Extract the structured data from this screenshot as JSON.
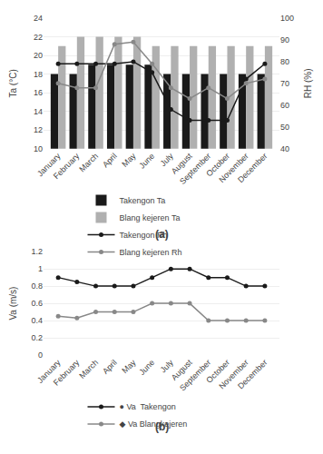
{
  "chart_data": [
    {
      "type": "bar",
      "categories": [
        "January",
        "February",
        "March",
        "April",
        "May",
        "June",
        "July",
        "August",
        "September",
        "October",
        "November",
        "December"
      ],
      "series": [
        {
          "name": "Takengon Ta",
          "color": "#1a1a1a",
          "values": [
            18,
            18,
            19,
            19,
            19,
            19,
            18,
            18,
            18,
            18,
            18,
            18
          ]
        },
        {
          "name": "Blang kejeren Ta",
          "color": "#b0b0b0",
          "values": [
            21,
            22,
            22,
            22,
            22,
            21,
            21,
            21,
            21,
            21,
            21,
            21
          ]
        },
        {
          "name": "Takengon Rh",
          "type": "line",
          "axis": "y2",
          "color": "#1a1a1a",
          "marker": "circle",
          "values": [
            79,
            79,
            79,
            79,
            80,
            75,
            58,
            53,
            53,
            53,
            72,
            79
          ]
        },
        {
          "name": "Blang kejeren Rh",
          "type": "line",
          "axis": "y2",
          "color": "#888888",
          "marker": "circle",
          "values": [
            70,
            68,
            68,
            88,
            89,
            79,
            68,
            63,
            68,
            63,
            70,
            72
          ]
        }
      ],
      "y_label": "Ta (°C)",
      "y2_label": "RH (%)",
      "ylim": [
        10,
        24
      ],
      "yticks": [
        10,
        12,
        14,
        16,
        18,
        20,
        22,
        24
      ],
      "y2lim": [
        40,
        100
      ],
      "y2ticks": [
        40,
        50,
        60,
        70,
        80,
        90,
        100
      ],
      "grid": true,
      "legend": "bottom",
      "annotations": [
        "(a)"
      ]
    },
    {
      "type": "line",
      "categories": [
        "January",
        "February",
        "March",
        "April",
        "May",
        "June",
        "July",
        "August",
        "September",
        "October",
        "November",
        "December"
      ],
      "series": [
        {
          "name": "● Va  Takengon",
          "color": "#1a1a1a",
          "marker": "circle",
          "values": [
            0.9,
            0.85,
            0.8,
            0.8,
            0.8,
            0.9,
            1.0,
            1.0,
            0.9,
            0.9,
            0.8,
            0.8
          ]
        },
        {
          "name": "◆ Va Blangkejeren",
          "color": "#888888",
          "marker": "circle",
          "values": [
            0.45,
            0.43,
            0.5,
            0.5,
            0.5,
            0.6,
            0.6,
            0.6,
            0.4,
            0.4,
            0.4,
            0.4
          ]
        }
      ],
      "y_label": "Va (m/s)",
      "ylim": [
        0,
        1.2
      ],
      "yticks": [
        0,
        0.2,
        0.4,
        0.6,
        0.8,
        1,
        1.2
      ],
      "grid": true,
      "legend": "bottom",
      "annotations": [
        "(b)"
      ]
    }
  ]
}
